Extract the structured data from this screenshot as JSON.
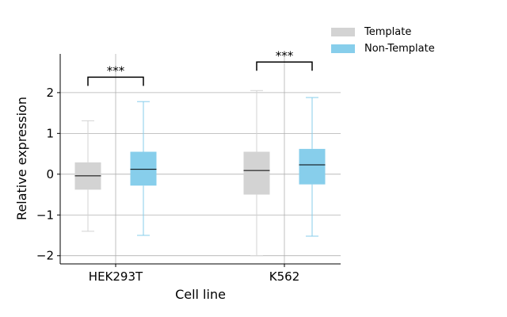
{
  "chart_data": {
    "type": "box",
    "xlabel": "Cell line",
    "ylabel": "Relative expression",
    "categories": [
      "HEK293T",
      "K562"
    ],
    "ylim": [
      -2.2,
      2.95
    ],
    "yticks": [
      -2,
      -1,
      0,
      1,
      2
    ],
    "ytick_labels": [
      "−2",
      "−1",
      "0",
      "1",
      "2"
    ],
    "grid": true,
    "legend_position": "upper-right outside",
    "series": [
      {
        "name": "Template",
        "color": "#d3d3d3",
        "boxes": [
          {
            "whisker_low": -1.4,
            "q1": -0.38,
            "median": -0.04,
            "q3": 0.29,
            "whisker_high": 1.31
          },
          {
            "whisker_low": -2.0,
            "q1": -0.5,
            "median": 0.09,
            "q3": 0.55,
            "whisker_high": 2.05
          }
        ]
      },
      {
        "name": "Non-Template",
        "color": "#87ceeb",
        "boxes": [
          {
            "whisker_low": -1.5,
            "q1": -0.28,
            "median": 0.12,
            "q3": 0.55,
            "whisker_high": 1.78
          },
          {
            "whisker_low": -1.52,
            "q1": -0.25,
            "median": 0.23,
            "q3": 0.62,
            "whisker_high": 1.88
          }
        ]
      }
    ],
    "annotations": [
      {
        "category": "HEK293T",
        "text": "***",
        "y": 2.38
      },
      {
        "category": "K562",
        "text": "***",
        "y": 2.75
      }
    ]
  }
}
